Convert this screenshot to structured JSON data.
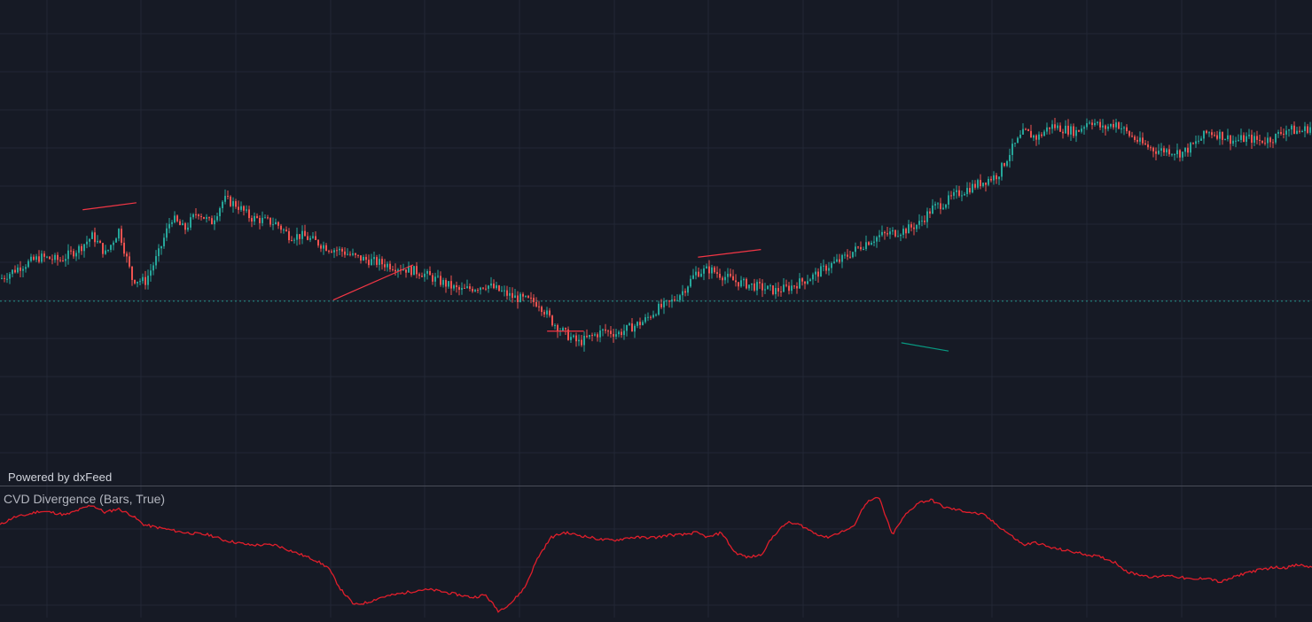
{
  "branding": {
    "powered_by": "Powered by dxFeed"
  },
  "indicator": {
    "label": "CVD Divergence (Bars, True)"
  },
  "colors": {
    "background": "#161a25",
    "grid": "#222735",
    "up_candle": "#26a69a",
    "down_candle": "#ef5350",
    "price_line": "#26a69a",
    "bearish_divergence": "#f23645",
    "bullish_divergence": "#089981",
    "cvd_line": "#e01e2b",
    "pane_separator": "#4a4e58"
  },
  "chart_data": [
    {
      "type": "candlestick",
      "title": "",
      "grid": true,
      "price_line": true,
      "note_scale": "no axis labels visible; values in relative price units",
      "ylim": [
        0,
        100
      ],
      "xlim": [
        0,
        100
      ],
      "price_path": [
        [
          0,
          48
        ],
        [
          1.5,
          52
        ],
        [
          3,
          55
        ],
        [
          4.5,
          54
        ],
        [
          6,
          58
        ],
        [
          7,
          62
        ],
        [
          8,
          56
        ],
        [
          9,
          64
        ],
        [
          10,
          48
        ],
        [
          11,
          47
        ],
        [
          12,
          56
        ],
        [
          13,
          68
        ],
        [
          14,
          64
        ],
        [
          15,
          70
        ],
        [
          16,
          66
        ],
        [
          17,
          74
        ],
        [
          18,
          72
        ],
        [
          19,
          68
        ],
        [
          20,
          67
        ],
        [
          21,
          66
        ],
        [
          22,
          62
        ],
        [
          23,
          62
        ],
        [
          24,
          60
        ],
        [
          25,
          58
        ],
        [
          26,
          57
        ],
        [
          27,
          55
        ],
        [
          28,
          54
        ],
        [
          29,
          53
        ],
        [
          30,
          52
        ],
        [
          31,
          51
        ],
        [
          32,
          50
        ],
        [
          33,
          48
        ],
        [
          34,
          46
        ],
        [
          35,
          44
        ],
        [
          36,
          45
        ],
        [
          37,
          46
        ],
        [
          38,
          44
        ],
        [
          39,
          42
        ],
        [
          40,
          41
        ],
        [
          41,
          40
        ],
        [
          42,
          34
        ],
        [
          43,
          30
        ],
        [
          44,
          27
        ],
        [
          45,
          29
        ],
        [
          46,
          31
        ],
        [
          47,
          30
        ],
        [
          48,
          32
        ],
        [
          49,
          34
        ],
        [
          50,
          38
        ],
        [
          51,
          40
        ],
        [
          52,
          44
        ],
        [
          53,
          50
        ],
        [
          54,
          51
        ],
        [
          55,
          49
        ],
        [
          56,
          47
        ],
        [
          57,
          46
        ],
        [
          58,
          45
        ],
        [
          59,
          44
        ],
        [
          60,
          45
        ],
        [
          61,
          47
        ],
        [
          62,
          49
        ],
        [
          63,
          52
        ],
        [
          64,
          54
        ],
        [
          65,
          57
        ],
        [
          66,
          60
        ],
        [
          67,
          62
        ],
        [
          68,
          63
        ],
        [
          69,
          64
        ],
        [
          70,
          66
        ],
        [
          71,
          71
        ],
        [
          72,
          73
        ],
        [
          73,
          76
        ],
        [
          74,
          78
        ],
        [
          75,
          80
        ],
        [
          76,
          82
        ],
        [
          77,
          90
        ],
        [
          78,
          96
        ],
        [
          79,
          94
        ],
        [
          80,
          98
        ],
        [
          81,
          97
        ],
        [
          82,
          96
        ],
        [
          83,
          100
        ],
        [
          84,
          97
        ],
        [
          85,
          99
        ],
        [
          86,
          95
        ],
        [
          87,
          92
        ],
        [
          88,
          90
        ],
        [
          89,
          90
        ],
        [
          90,
          89
        ],
        [
          91,
          92
        ],
        [
          92,
          96
        ],
        [
          93,
          95
        ],
        [
          94,
          93
        ],
        [
          95,
          94
        ],
        [
          96,
          93
        ],
        [
          97,
          94
        ],
        [
          98,
          97
        ],
        [
          99,
          96
        ],
        [
          100,
          98
        ]
      ],
      "divergence_lines": [
        {
          "kind": "bearish",
          "from": [
            6.3,
            70.5
          ],
          "to": [
            10.4,
            72.8
          ]
        },
        {
          "kind": "bearish",
          "from": [
            25.4,
            41.0
          ],
          "to": [
            31.5,
            52.5
          ]
        },
        {
          "kind": "bearish",
          "from": [
            41.7,
            30.8
          ],
          "to": [
            44.5,
            30.8
          ]
        },
        {
          "kind": "bearish",
          "from": [
            53.2,
            55.0
          ],
          "to": [
            58.0,
            57.5
          ]
        },
        {
          "kind": "bullish",
          "from": [
            68.7,
            27.0
          ],
          "to": [
            72.3,
            24.3
          ]
        }
      ],
      "price_line_level": 40.6
    },
    {
      "type": "line",
      "title": "CVD Divergence (Bars, True)",
      "grid": true,
      "ylim": [
        0,
        100
      ],
      "xlim": [
        0,
        100
      ],
      "series": [
        {
          "values": [
            [
              0,
              72
            ],
            [
              1,
              78
            ],
            [
              2,
              80
            ],
            [
              3,
              83
            ],
            [
              4,
              82
            ],
            [
              5,
              80
            ],
            [
              6,
              84
            ],
            [
              7,
              88
            ],
            [
              8,
              82
            ],
            [
              9,
              85
            ],
            [
              10,
              80
            ],
            [
              11,
              72
            ],
            [
              12,
              70
            ],
            [
              13,
              68
            ],
            [
              14,
              66
            ],
            [
              15,
              65
            ],
            [
              16,
              64
            ],
            [
              17,
              60
            ],
            [
              18,
              58
            ],
            [
              19,
              56
            ],
            [
              20,
              56
            ],
            [
              21,
              56
            ],
            [
              22,
              52
            ],
            [
              23,
              48
            ],
            [
              24,
              44
            ],
            [
              25,
              38
            ],
            [
              26,
              20
            ],
            [
              27,
              8
            ],
            [
              28,
              10
            ],
            [
              29,
              14
            ],
            [
              30,
              16
            ],
            [
              31,
              18
            ],
            [
              32,
              20
            ],
            [
              33,
              20
            ],
            [
              34,
              18
            ],
            [
              35,
              16
            ],
            [
              36,
              14
            ],
            [
              37,
              16
            ],
            [
              38,
              3
            ],
            [
              39,
              10
            ],
            [
              40,
              22
            ],
            [
              41,
              46
            ],
            [
              42,
              62
            ],
            [
              43,
              66
            ],
            [
              44,
              64
            ],
            [
              45,
              62
            ],
            [
              46,
              60
            ],
            [
              47,
              60
            ],
            [
              48,
              62
            ],
            [
              49,
              62
            ],
            [
              50,
              62
            ],
            [
              51,
              64
            ],
            [
              52,
              64
            ],
            [
              53,
              66
            ],
            [
              54,
              62
            ],
            [
              55,
              66
            ],
            [
              56,
              50
            ],
            [
              57,
              46
            ],
            [
              58,
              48
            ],
            [
              59,
              64
            ],
            [
              60,
              74
            ],
            [
              61,
              72
            ],
            [
              62,
              66
            ],
            [
              63,
              62
            ],
            [
              64,
              66
            ],
            [
              65,
              70
            ],
            [
              66,
              90
            ],
            [
              67,
              94
            ],
            [
              68,
              64
            ],
            [
              69,
              80
            ],
            [
              70,
              90
            ],
            [
              71,
              92
            ],
            [
              72,
              86
            ],
            [
              73,
              84
            ],
            [
              74,
              82
            ],
            [
              75,
              80
            ],
            [
              76,
              72
            ],
            [
              77,
              64
            ],
            [
              78,
              56
            ],
            [
              79,
              58
            ],
            [
              80,
              54
            ],
            [
              81,
              52
            ],
            [
              82,
              50
            ],
            [
              83,
              48
            ],
            [
              84,
              46
            ],
            [
              85,
              42
            ],
            [
              86,
              34
            ],
            [
              87,
              32
            ],
            [
              88,
              30
            ],
            [
              89,
              32
            ],
            [
              90,
              30
            ],
            [
              91,
              28
            ],
            [
              92,
              30
            ],
            [
              93,
              26
            ],
            [
              94,
              30
            ],
            [
              95,
              34
            ],
            [
              96,
              36
            ],
            [
              97,
              38
            ],
            [
              98,
              38
            ],
            [
              99,
              40
            ],
            [
              100,
              38
            ]
          ]
        }
      ]
    }
  ]
}
